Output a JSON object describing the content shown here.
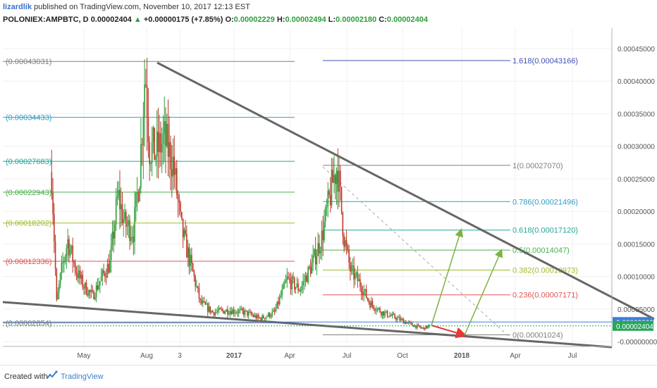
{
  "header": {
    "author": "lizardlik",
    "publish_text": "published on TradingView.com, November 10, 2017 12:13 EST",
    "symbol": "POLONIEX:AMPBTC, D",
    "last": "0.00002404",
    "change_arrow": "▲",
    "change": "+0.00000175 (+7.85%)",
    "o_label": "O:",
    "o": "0.00002229",
    "h_label": "H:",
    "h": "0.00002494",
    "l_label": "L:",
    "l": "0.00002180",
    "c_label": "C:",
    "c": "0.00002404"
  },
  "footer": {
    "created_with": "Created with",
    "brand": "TradingView"
  },
  "chart_data": {
    "type": "candlestick",
    "title": "POLONIEX:AMPBTC, D",
    "x_tick_labels": [
      "May",
      "Aug",
      "3",
      "2017",
      "Apr",
      "Jul",
      "Oct",
      "2018",
      "Apr",
      "Jul"
    ],
    "y_tick_labels": [
      "0.00045000",
      "0.00040000",
      "0.00035000",
      "0.00030000",
      "0.00025000",
      "0.00020000",
      "0.00015000",
      "0.00010000",
      "0.00005000",
      "-0.00000000"
    ],
    "ylim": [
      -5e-07,
      0.000469
    ],
    "price_tags": [
      {
        "label": "0.00003000",
        "value": 3e-05,
        "color": "#3d7fd9"
      },
      {
        "label": "0.00002404",
        "value": 2.404e-05,
        "color": "#26a65b"
      }
    ],
    "fib_left": [
      {
        "label": "(0.00043031)",
        "value": 0.00043031,
        "color": "#808080"
      },
      {
        "label": "(0.00034433)",
        "value": 0.00034433,
        "color": "#2e9fc6"
      },
      {
        "label": "(0.00027683)",
        "value": 0.00027683,
        "color": "#26a69a"
      },
      {
        "label": "(0.00022943)",
        "value": 0.00022943,
        "color": "#4caf50"
      },
      {
        "label": "(0.00018202)",
        "value": 0.00018202,
        "color": "#9bbf2a"
      },
      {
        "label": "(0.00012336)",
        "value": 0.00012336,
        "color": "#e05555"
      },
      {
        "label": "(0.00002854)",
        "value": 2.854e-05,
        "color": "#808080"
      }
    ],
    "fib_right": [
      {
        "label": "1.618(0.00043166)",
        "value": 0.00043166,
        "color": "#3f51b5"
      },
      {
        "label": "1(0.00027070)",
        "value": 0.0002707,
        "color": "#808080"
      },
      {
        "label": "0.786(0.00021496)",
        "value": 0.00021496,
        "color": "#2e9fc6"
      },
      {
        "label": "0.618(0.00017120)",
        "value": 0.0001712,
        "color": "#26a69a"
      },
      {
        "label": "0.5(0.00014047)",
        "value": 0.00014047,
        "color": "#4caf50"
      },
      {
        "label": "0.382(0.00010973)",
        "value": 0.00010973,
        "color": "#9bbf2a"
      },
      {
        "label": "0.236(0.00007171)",
        "value": 7.171e-05,
        "color": "#e05555"
      },
      {
        "label": "0(0.00001024)",
        "value": 1.024e-05,
        "color": "#808080"
      }
    ],
    "price_path": [
      {
        "date": "2016-03-10",
        "close": 0.00026
      },
      {
        "date": "2016-03-18",
        "close": 6e-05
      },
      {
        "date": "2016-03-26",
        "close": 0.00011
      },
      {
        "date": "2016-04-05",
        "close": 0.000155
      },
      {
        "date": "2016-04-18",
        "close": 0.00011
      },
      {
        "date": "2016-05-01",
        "close": 8.5e-05
      },
      {
        "date": "2016-05-15",
        "close": 7e-05
      },
      {
        "date": "2016-05-28",
        "close": 9.5e-05
      },
      {
        "date": "2016-06-12",
        "close": 0.00012
      },
      {
        "date": "2016-06-25",
        "close": 0.000225
      },
      {
        "date": "2016-07-06",
        "close": 0.00018
      },
      {
        "date": "2016-07-20",
        "close": 0.00017
      },
      {
        "date": "2016-07-30",
        "close": 0.00026
      },
      {
        "date": "2016-08-08",
        "close": 0.00042
      },
      {
        "date": "2016-08-15",
        "close": 0.0003
      },
      {
        "date": "2016-08-25",
        "close": 0.00029
      },
      {
        "date": "2016-09-08",
        "close": 0.00031
      },
      {
        "date": "2016-09-22",
        "close": 0.000275
      },
      {
        "date": "2016-10-05",
        "close": 0.000175
      },
      {
        "date": "2016-10-20",
        "close": 0.00012
      },
      {
        "date": "2016-11-05",
        "close": 6e-05
      },
      {
        "date": "2016-11-25",
        "close": 4.5e-05
      },
      {
        "date": "2016-12-20",
        "close": 4.8e-05
      },
      {
        "date": "2017-01-15",
        "close": 4.5e-05
      },
      {
        "date": "2017-02-10",
        "close": 3.5e-05
      },
      {
        "date": "2017-03-05",
        "close": 4.5e-05
      },
      {
        "date": "2017-03-25",
        "close": 9.5e-05
      },
      {
        "date": "2017-04-15",
        "close": 8e-05
      },
      {
        "date": "2017-05-05",
        "close": 0.00012
      },
      {
        "date": "2017-05-20",
        "close": 0.00016
      },
      {
        "date": "2017-06-08",
        "close": 0.00025
      },
      {
        "date": "2017-06-14",
        "close": 0.00027
      },
      {
        "date": "2017-06-25",
        "close": 0.00016
      },
      {
        "date": "2017-07-05",
        "close": 0.00011
      },
      {
        "date": "2017-07-20",
        "close": 9e-05
      },
      {
        "date": "2017-08-05",
        "close": 6e-05
      },
      {
        "date": "2017-08-25",
        "close": 4.5e-05
      },
      {
        "date": "2017-09-20",
        "close": 3.5e-05
      },
      {
        "date": "2017-10-15",
        "close": 2.5e-05
      },
      {
        "date": "2017-10-30",
        "close": 2e-05
      },
      {
        "date": "2017-11-10",
        "close": 2.4e-05
      }
    ]
  }
}
